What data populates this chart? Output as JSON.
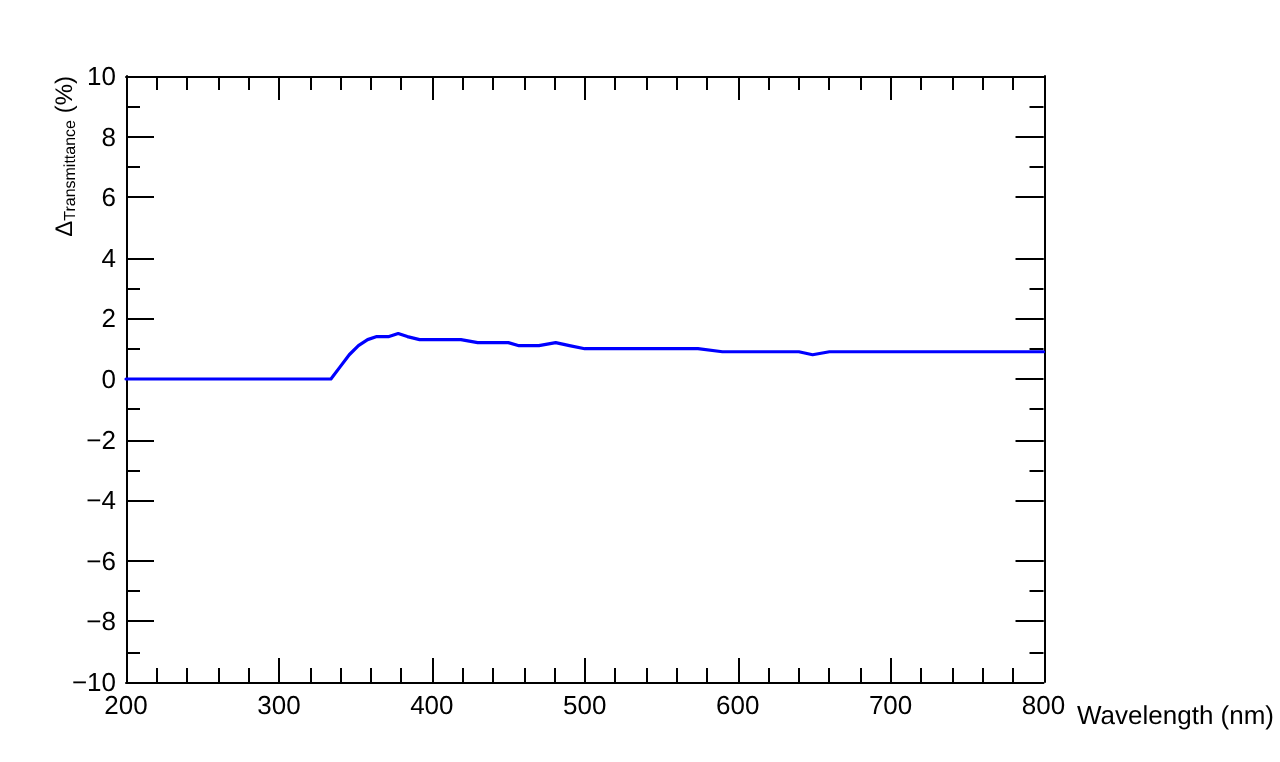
{
  "chart_data": {
    "type": "line",
    "xlabel": "Wavelength (nm)",
    "ylabel": "Δ$_{Transmittance}$ (%)",
    "xlim": [
      200,
      800
    ],
    "xticks": [
      200,
      300,
      400,
      500,
      600,
      700,
      800
    ],
    "ylim": [
      -10,
      10
    ],
    "yticks": [
      -10,
      -8,
      -6,
      -4,
      -2,
      0,
      2,
      4,
      6,
      8,
      10
    ],
    "grid": false,
    "marker": "none",
    "line_style": "solid",
    "series": [
      {
        "color": "#0000ff",
        "x": [
          200,
          334,
          340,
          346,
          352,
          358,
          364,
          372,
          378,
          384,
          392,
          400,
          410,
          419,
          430,
          440,
          450,
          457,
          470,
          481,
          490,
          500,
          520,
          536,
          555,
          574,
          590,
          609,
          625,
          640,
          649,
          660,
          675,
          688,
          705,
          726,
          745,
          766,
          785,
          800
        ],
        "values": [
          0,
          0,
          0.4,
          0.8,
          1.1,
          1.3,
          1.4,
          1.4,
          1.5,
          1.4,
          1.3,
          1.3,
          1.3,
          1.3,
          1.2,
          1.2,
          1.2,
          1.1,
          1.1,
          1.2,
          1.1,
          1.0,
          1.0,
          1.0,
          1.0,
          1.0,
          0.9,
          0.9,
          0.9,
          0.9,
          0.8,
          0.9,
          0.9,
          0.9,
          0.9,
          0.9,
          0.9,
          0.9,
          0.9,
          0.9
        ]
      }
    ]
  }
}
